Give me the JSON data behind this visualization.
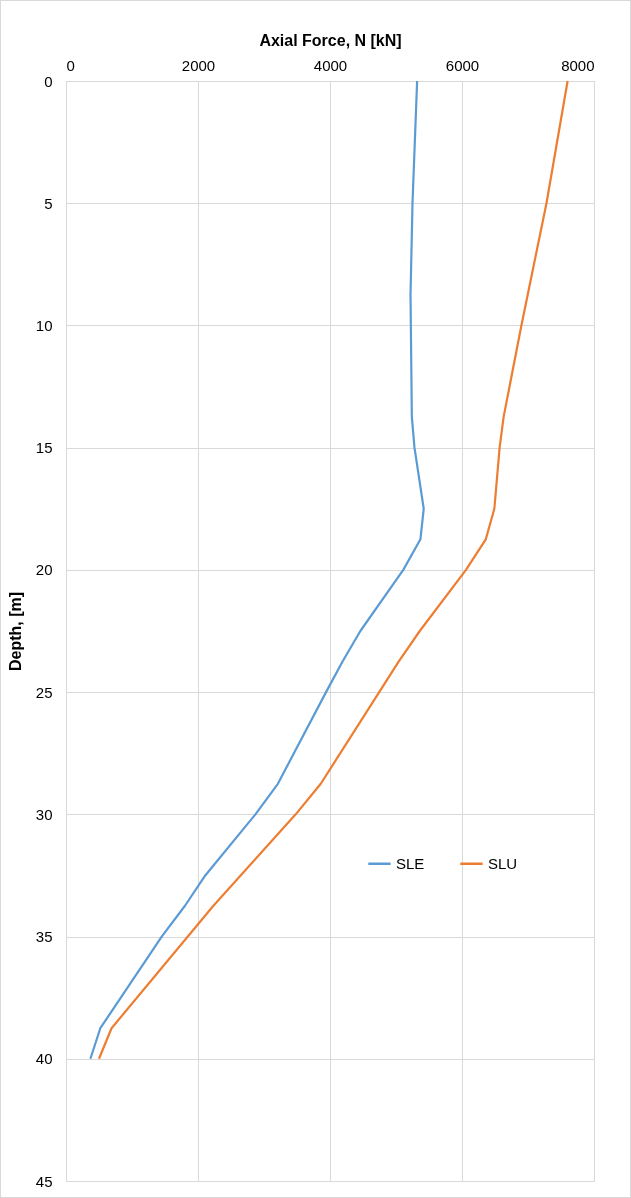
{
  "chart_data": {
    "type": "line",
    "xlabel": "Axial Force,  N  [kN]",
    "ylabel": "Depth,  [m]",
    "xlim": [
      0,
      8000
    ],
    "xticks": [
      0,
      2000,
      4000,
      6000,
      8000
    ],
    "ylim": [
      45,
      0
    ],
    "yticks": [
      0,
      5,
      10,
      15,
      20,
      25,
      30,
      35,
      40,
      45
    ],
    "grid": true,
    "legend": "right",
    "marker": "none",
    "line_style": "solid",
    "series": [
      {
        "name": "SLE",
        "color": "#5b9bd5",
        "x": [
          5320,
          5250,
          5220,
          5240,
          5280,
          5420,
          5370,
          5110,
          4460,
          4190,
          3940,
          3210,
          2870,
          2110,
          1800,
          1450,
          520,
          370
        ],
        "values": [
          0,
          5,
          8.75,
          13.75,
          15,
          17.5,
          18.75,
          20,
          22.5,
          23.75,
          25,
          28.75,
          30,
          32.5,
          33.75,
          35,
          38.75,
          40
        ]
      },
      {
        "name": "SLU",
        "color": "#ed7d31",
        "x": [
          7600,
          7280,
          6900,
          6630,
          6570,
          6490,
          6360,
          6060,
          5360,
          5040,
          3860,
          3480,
          2230,
          690,
          500
        ],
        "values": [
          0,
          5,
          10,
          13.75,
          15,
          17.5,
          18.75,
          20,
          22.5,
          23.75,
          28.75,
          30,
          33.75,
          38.75,
          40
        ]
      }
    ]
  }
}
